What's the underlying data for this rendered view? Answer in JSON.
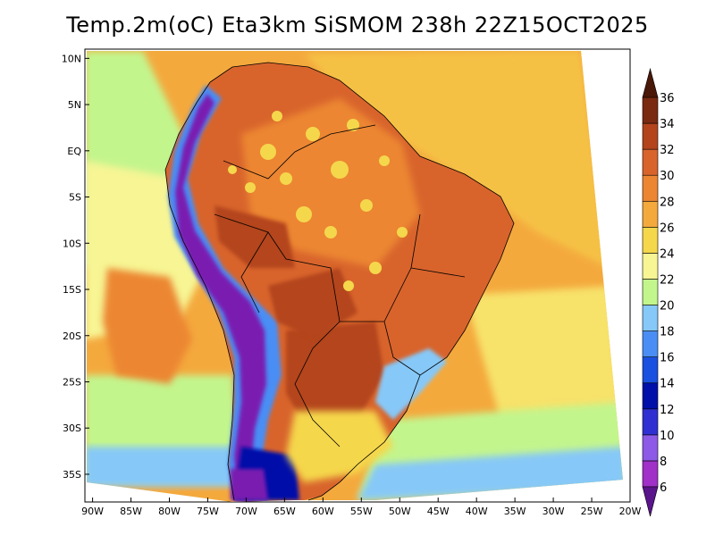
{
  "title": "Temp.2m(oC) Eta3km SiSMOM 238h 22Z15OCT2025",
  "map": {
    "lon_range": [
      -91,
      -20
    ],
    "lat_range": [
      -38,
      11
    ],
    "lon_ticks": [
      {
        "value": -90,
        "label": "90W"
      },
      {
        "value": -85,
        "label": "85W"
      },
      {
        "value": -80,
        "label": "80W"
      },
      {
        "value": -75,
        "label": "75W"
      },
      {
        "value": -70,
        "label": "70W"
      },
      {
        "value": -65,
        "label": "65W"
      },
      {
        "value": -60,
        "label": "60W"
      },
      {
        "value": -55,
        "label": "55W"
      },
      {
        "value": -50,
        "label": "50W"
      },
      {
        "value": -45,
        "label": "45W"
      },
      {
        "value": -40,
        "label": "40W"
      },
      {
        "value": -35,
        "label": "35W"
      },
      {
        "value": -30,
        "label": "30W"
      },
      {
        "value": -25,
        "label": "25W"
      },
      {
        "value": -20,
        "label": "20W"
      }
    ],
    "lat_ticks": [
      {
        "value": 10,
        "label": "10N"
      },
      {
        "value": 5,
        "label": "5N"
      },
      {
        "value": 0,
        "label": "EQ"
      },
      {
        "value": -5,
        "label": "5S"
      },
      {
        "value": -10,
        "label": "10S"
      },
      {
        "value": -15,
        "label": "15S"
      },
      {
        "value": -20,
        "label": "20S"
      },
      {
        "value": -25,
        "label": "25S"
      },
      {
        "value": -30,
        "label": "30S"
      },
      {
        "value": -35,
        "label": "35S"
      }
    ]
  },
  "colorbar": {
    "levels": [
      "6",
      "8",
      "10",
      "12",
      "14",
      "16",
      "18",
      "20",
      "22",
      "24",
      "26",
      "28",
      "30",
      "32",
      "34",
      "36"
    ],
    "colors": [
      "#7a1ab0",
      "#a030c8",
      "#8c5ae6",
      "#3030d2",
      "#0010a8",
      "#1a50e0",
      "#4a8ef5",
      "#86c8f8",
      "#c3f58d",
      "#f7f594",
      "#f5d74c",
      "#f4a93d",
      "#ec8633",
      "#d8642c",
      "#b4441c",
      "#7a2a10",
      "#4a1808"
    ],
    "arrow_low_color": "#5a148c",
    "arrow_high_color": "#4a1808"
  }
}
